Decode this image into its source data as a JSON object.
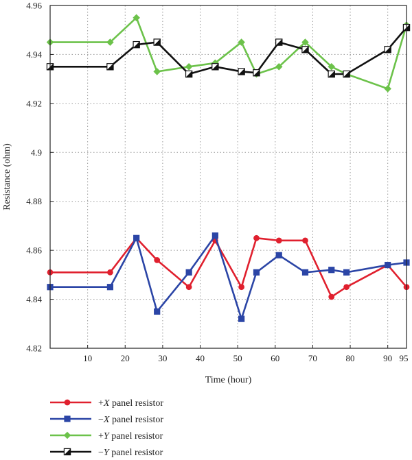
{
  "chart_data": {
    "type": "line",
    "xlabel": "Time (hour)",
    "ylabel": "Resistance (ohm)",
    "xlim": [
      0,
      95
    ],
    "ylim": [
      4.82,
      4.96
    ],
    "x_ticks": [
      10,
      20,
      30,
      40,
      50,
      60,
      70,
      80,
      90,
      95
    ],
    "y_ticks": [
      4.82,
      4.84,
      4.86,
      4.88,
      4.9,
      4.92,
      4.94,
      4.96
    ],
    "y_tick_labels": [
      "4.82",
      "4.84",
      "4.86",
      "4.88",
      "4.9",
      "4.92",
      "4.94",
      "4.96"
    ],
    "grid": true,
    "legend_position": "bottom",
    "series": [
      {
        "name": "+X panel resistor",
        "name_prefix": "+",
        "name_var": "X",
        "name_suffix": " panel resistor",
        "color": "#e0202e",
        "marker": "circle",
        "x": [
          0,
          16,
          23,
          28.5,
          37,
          44,
          51,
          55,
          61,
          68,
          75,
          79,
          90,
          95
        ],
        "y": [
          4.851,
          4.851,
          4.865,
          4.856,
          4.845,
          4.864,
          4.845,
          4.865,
          4.864,
          4.864,
          4.841,
          4.845,
          4.854,
          4.845
        ]
      },
      {
        "name": "−X panel resistor",
        "name_prefix": "−",
        "name_var": "X",
        "name_suffix": " panel resistor",
        "color": "#2b45a6",
        "marker": "square",
        "x": [
          0,
          16,
          23,
          28.5,
          37,
          44,
          51,
          55,
          61,
          68,
          75,
          79,
          90,
          95
        ],
        "y": [
          4.845,
          4.845,
          4.865,
          4.835,
          4.851,
          4.866,
          4.832,
          4.851,
          4.858,
          4.851,
          4.852,
          4.851,
          4.854,
          4.855
        ]
      },
      {
        "name": "+Y panel resistor",
        "name_prefix": "+",
        "name_var": "Y",
        "name_suffix": " panel resistor",
        "color": "#6cc24a",
        "marker": "diamond",
        "x": [
          0,
          16,
          23,
          28.5,
          37,
          44,
          51,
          55,
          61,
          68,
          75,
          79,
          90,
          95
        ],
        "y": [
          4.945,
          4.945,
          4.955,
          4.933,
          4.935,
          4.9365,
          4.945,
          4.932,
          4.935,
          4.945,
          4.935,
          4.932,
          4.926,
          4.952
        ]
      },
      {
        "name": "−Y panel resistor",
        "name_prefix": "−",
        "name_var": "Y",
        "name_suffix": " panel resistor",
        "color": "#111111",
        "marker": "half-square",
        "x": [
          0,
          16,
          23,
          28.5,
          37,
          44,
          51,
          55,
          61,
          68,
          75,
          79,
          90,
          95
        ],
        "y": [
          4.935,
          4.935,
          4.944,
          4.945,
          4.932,
          4.935,
          4.933,
          4.9325,
          4.945,
          4.942,
          4.932,
          4.932,
          4.942,
          4.951
        ]
      }
    ]
  }
}
